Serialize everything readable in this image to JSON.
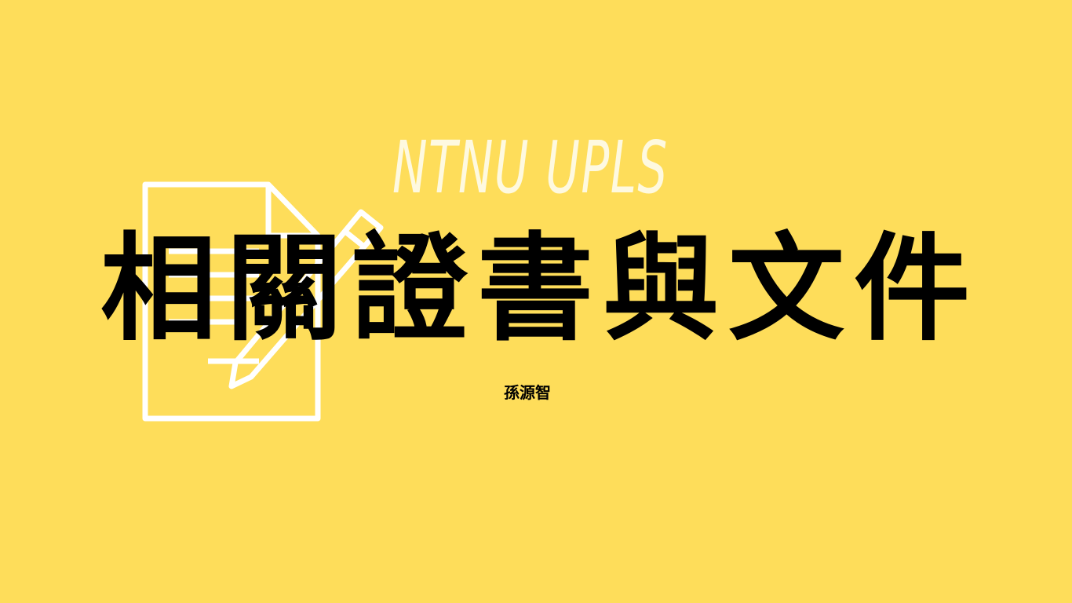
{
  "subtitle": "NTNU UPLS",
  "title": "相關證書與文件",
  "author": "孫源智"
}
